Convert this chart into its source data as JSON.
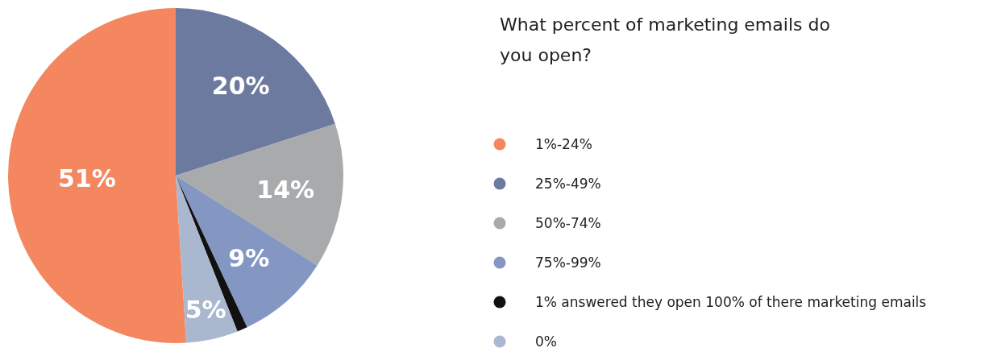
{
  "chart_data": {
    "type": "pie",
    "title": "What percent of marketing emails do you open?",
    "categories": [
      "1%-24%",
      "25%-49%",
      "50%-74%",
      "75%-99%",
      "1% answered they open 100% of there marketing emails",
      "0%"
    ],
    "values": [
      51,
      20,
      14,
      9,
      1,
      5
    ],
    "colors": [
      "#f4875f",
      "#6c7a9f",
      "#a9aaac",
      "#8497c3",
      "#111111",
      "#a9b7cf"
    ],
    "value_labels": [
      "51%",
      "20%",
      "14%",
      "9%",
      null,
      "5%"
    ],
    "legend": "right"
  }
}
